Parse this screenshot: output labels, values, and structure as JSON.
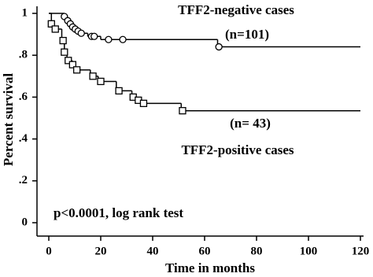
{
  "chart_data": {
    "type": "survival",
    "xlabel": "Time in months",
    "ylabel": "Percent survival",
    "xlim": [
      0,
      120
    ],
    "xticks": [
      0,
      20,
      40,
      60,
      80,
      100,
      120
    ],
    "ylim": [
      0,
      1
    ],
    "yticks": [
      0,
      {
        "value": 0.2,
        "label": ".2"
      },
      {
        "value": 0.4,
        "label": ".4"
      },
      {
        "value": 0.6,
        "label": ".6"
      },
      {
        "value": 0.8,
        "label": ".8"
      },
      1
    ],
    "series": [
      {
        "name": "TFF2-negative cases",
        "count_label": "(n=101)",
        "color": "#000000",
        "marker": "circle",
        "x": [
          0,
          6,
          7,
          8,
          9,
          10,
          11,
          12,
          15,
          20,
          65,
          120
        ],
        "values": [
          1,
          0.985,
          0.965,
          0.95,
          0.935,
          0.925,
          0.915,
          0.905,
          0.89,
          0.875,
          0.84,
          0.84
        ],
        "censored": {
          "x": [
            6,
            7.3,
            8.3,
            9.2,
            10.2,
            11.3,
            12.5,
            16.5,
            17.5,
            23,
            28.5,
            65.5
          ],
          "values": [
            0.985,
            0.965,
            0.95,
            0.935,
            0.925,
            0.915,
            0.905,
            0.89,
            0.89,
            0.875,
            0.875,
            0.84
          ]
        }
      },
      {
        "name": "TFF2-positive cases",
        "count_label": "(n= 43)",
        "color": "#000000",
        "marker": "square",
        "x": [
          0,
          1,
          2,
          5,
          6,
          7,
          9,
          10,
          16,
          19,
          26,
          32,
          34,
          36,
          51,
          120
        ],
        "values": [
          1,
          0.95,
          0.925,
          0.87,
          0.815,
          0.775,
          0.755,
          0.73,
          0.7,
          0.675,
          0.63,
          0.6,
          0.585,
          0.57,
          0.535,
          0.535
        ],
        "censored": {
          "x": [
            1,
            2.5,
            5.5,
            6,
            7.5,
            9.2,
            10.8,
            17,
            20,
            27,
            32.5,
            34.5,
            36.5,
            51.5
          ],
          "values": [
            0.95,
            0.925,
            0.87,
            0.815,
            0.775,
            0.755,
            0.73,
            0.7,
            0.675,
            0.63,
            0.6,
            0.585,
            0.57,
            0.535
          ]
        }
      }
    ],
    "annotation": "p<0.0001, log rank test"
  }
}
